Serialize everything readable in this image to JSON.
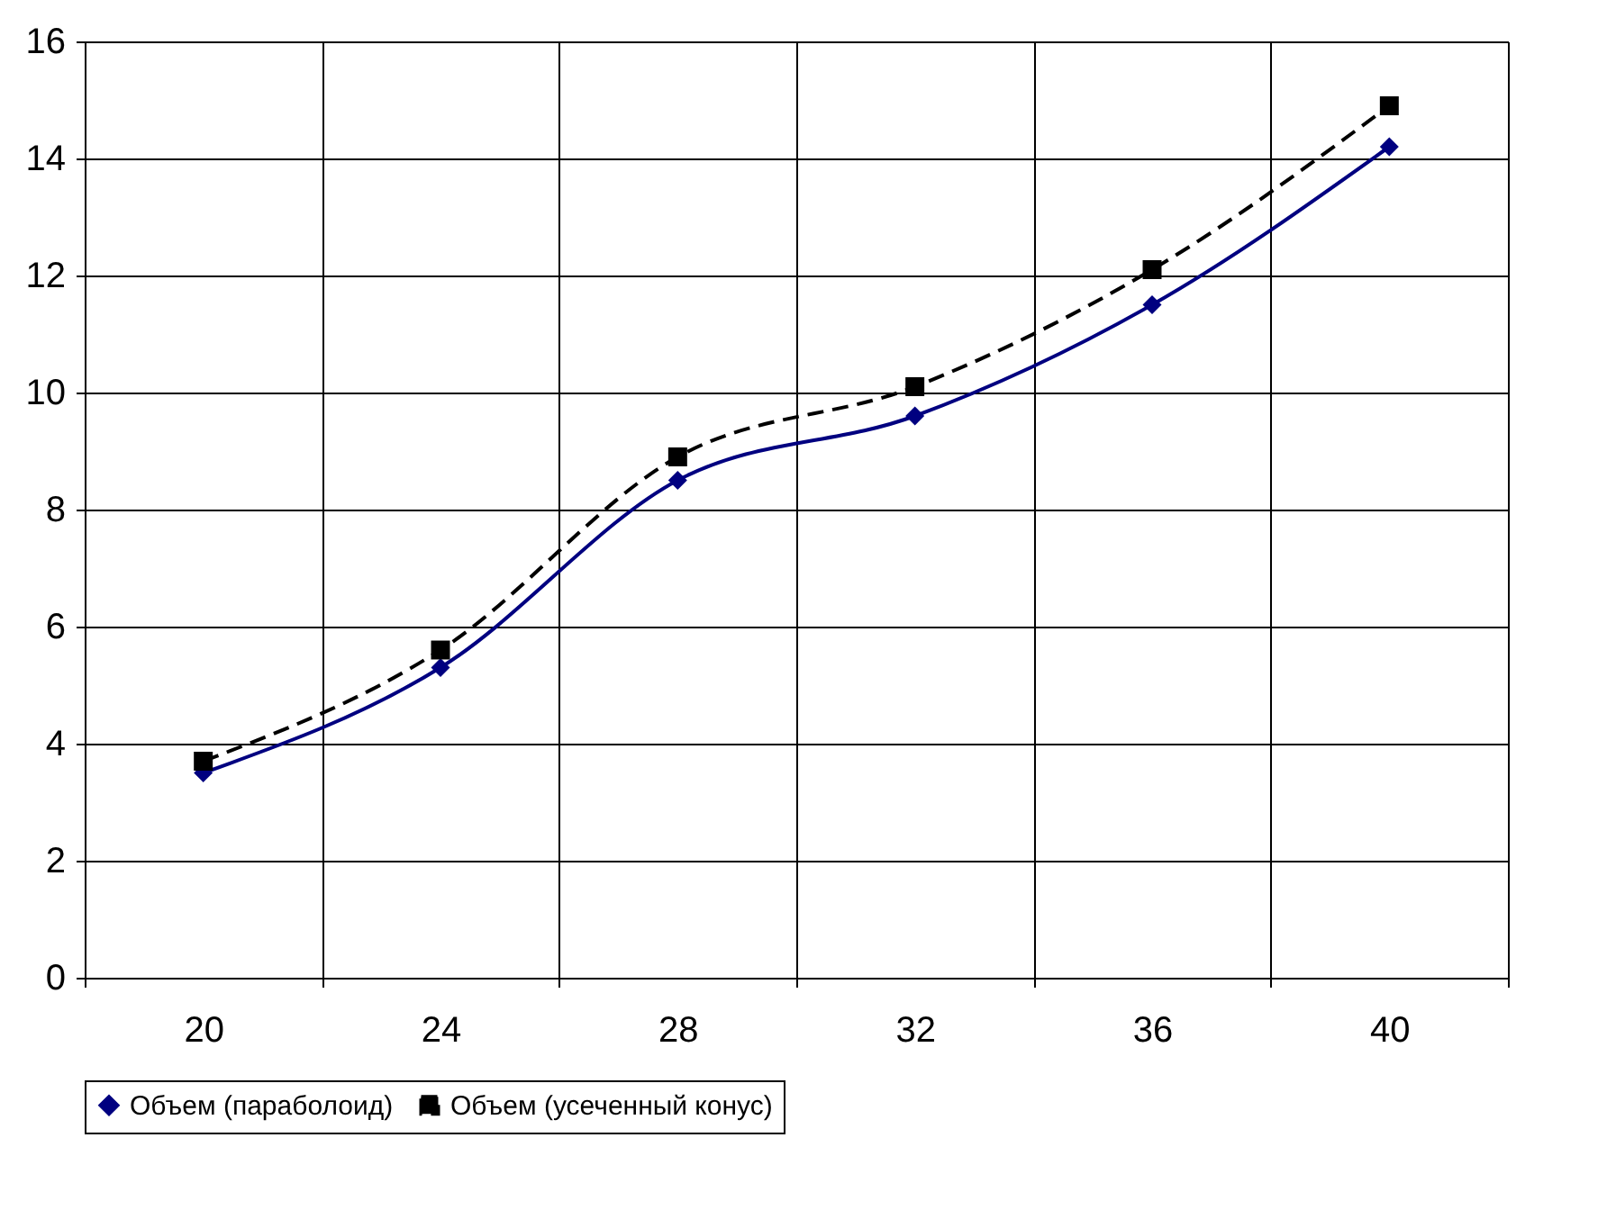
{
  "chart_data": {
    "type": "line",
    "categories": [
      "20",
      "24",
      "28",
      "32",
      "36",
      "40"
    ],
    "series": [
      {
        "name": "Объем (параболоид)",
        "color": "#000080",
        "values": [
          3.5,
          5.3,
          8.5,
          9.6,
          11.5,
          14.2
        ],
        "marker": "diamond",
        "line_style": "solid"
      },
      {
        "name": "Объем (усеченный конус)",
        "color": "#000000",
        "values": [
          3.7,
          5.6,
          8.9,
          10.1,
          12.1,
          14.9
        ],
        "marker": "square",
        "line_style": "dashed"
      }
    ],
    "ylim": [
      0,
      16
    ],
    "yticks": [
      0,
      2,
      4,
      6,
      8,
      10,
      12,
      14,
      16
    ],
    "grid": true,
    "legend": "bottom"
  }
}
